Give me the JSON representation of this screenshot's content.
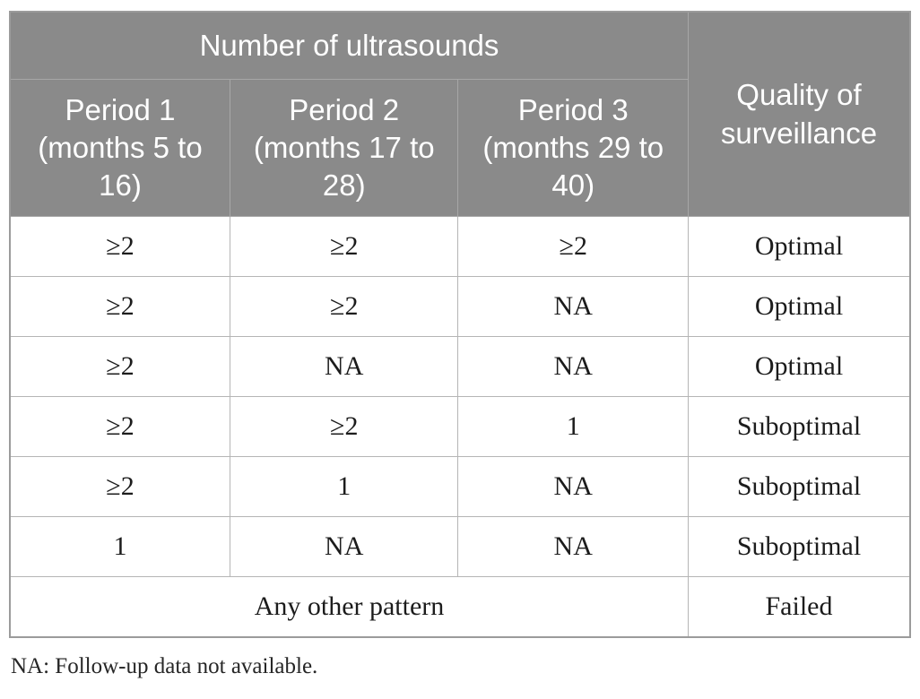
{
  "colors": {
    "header_bg": "#8a8a8a",
    "header_text": "#ffffff",
    "header_border": "#a7a7a7",
    "outer_border": "#9b9b9b",
    "body_border": "#b5b5b5",
    "body_text": "#1c1c1c"
  },
  "table": {
    "header": {
      "group_title": "Number of ultrasounds",
      "quality_title": "Quality of surveillance",
      "periods": [
        "Period 1 (months 5 to 16)",
        "Period 2 (months 17 to 28)",
        "Period 3 (months 29 to 40)"
      ]
    },
    "rows": [
      {
        "cells": [
          "≥2",
          "≥2",
          "≥2"
        ],
        "quality": "Optimal"
      },
      {
        "cells": [
          "≥2",
          "≥2",
          "NA"
        ],
        "quality": "Optimal"
      },
      {
        "cells": [
          "≥2",
          "NA",
          "NA"
        ],
        "quality": "Optimal"
      },
      {
        "cells": [
          "≥2",
          "≥2",
          "1"
        ],
        "quality": "Suboptimal"
      },
      {
        "cells": [
          "≥2",
          "1",
          "NA"
        ],
        "quality": "Suboptimal"
      },
      {
        "cells": [
          "1",
          "NA",
          "NA"
        ],
        "quality": "Suboptimal"
      }
    ],
    "footer_row": {
      "pattern": "Any other pattern",
      "quality": "Failed"
    }
  },
  "footnote": "NA: Follow-up data not available."
}
